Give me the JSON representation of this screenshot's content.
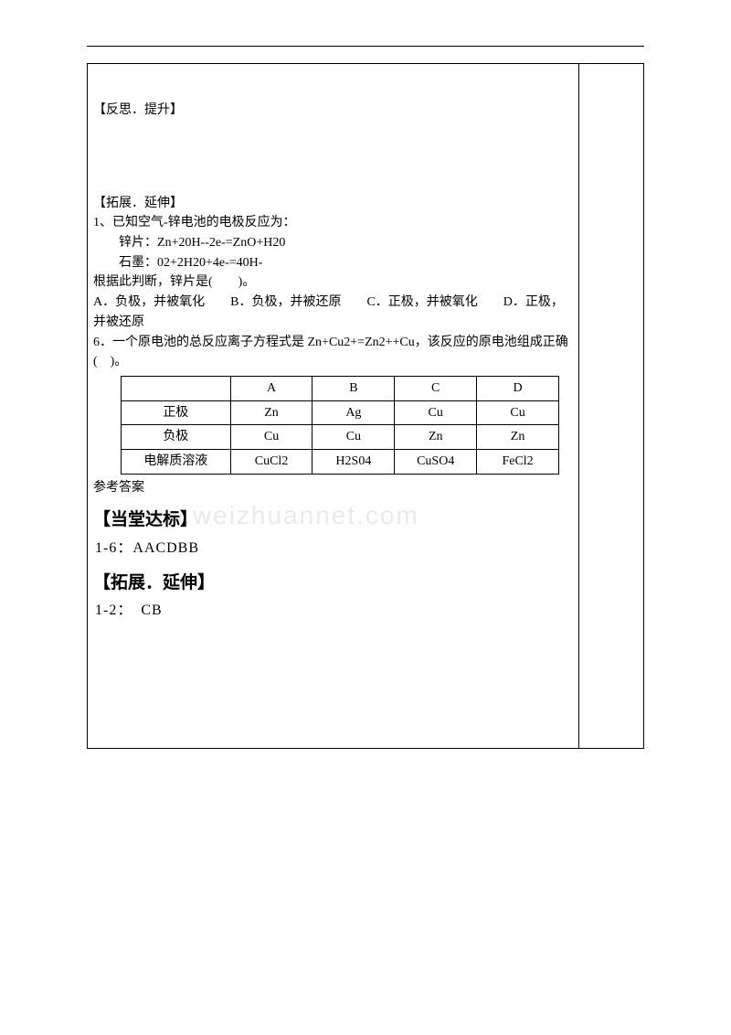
{
  "watermark": "www.weizhuannet.com",
  "sections": {
    "reflect_heading": "【反思．提升】",
    "extend_heading": "【拓展．延伸】",
    "q1_line1": "1、已知空气-锌电池的电极反应为：",
    "q1_line2": "锌片：Zn+20H--2e-=ZnO+H20",
    "q1_line3": "石墨：02+2H20+4e-=40H-",
    "q1_line4": "根据此判断，锌片是(　　)。",
    "q1_opts": "A．负极，并被氧化　　B．负极，并被还原　　C．正极，并被氧化　　D．正极，并被还原",
    "q6_line1": "6．一个原电池的总反应离子方程式是 Zn+Cu2+=Zn2++Cu，该反应的原电池组成正确(　)。",
    "table": {
      "head": [
        "",
        "A",
        "B",
        "C",
        "D"
      ],
      "rows": [
        {
          "label": "正极",
          "cells": [
            "Zn",
            "Ag",
            "Cu",
            "Cu"
          ]
        },
        {
          "label": "负极",
          "cells": [
            "Cu",
            "Cu",
            "Zn",
            "Zn"
          ]
        },
        {
          "label": "电解质溶液",
          "cells": [
            "CuCl2",
            "H2S04",
            "CuSO4",
            "FeCl2"
          ]
        }
      ]
    },
    "answer_label": "参考答案",
    "dangtang_heading": "【当堂达标】",
    "dangtang_ans": "1-6：AACDBB",
    "extend_heading2": "【拓展．延伸】",
    "extend_ans": "1-2： CB"
  },
  "colors": {
    "text": "#000000",
    "watermark": "#eaeaea",
    "background": "#ffffff"
  }
}
